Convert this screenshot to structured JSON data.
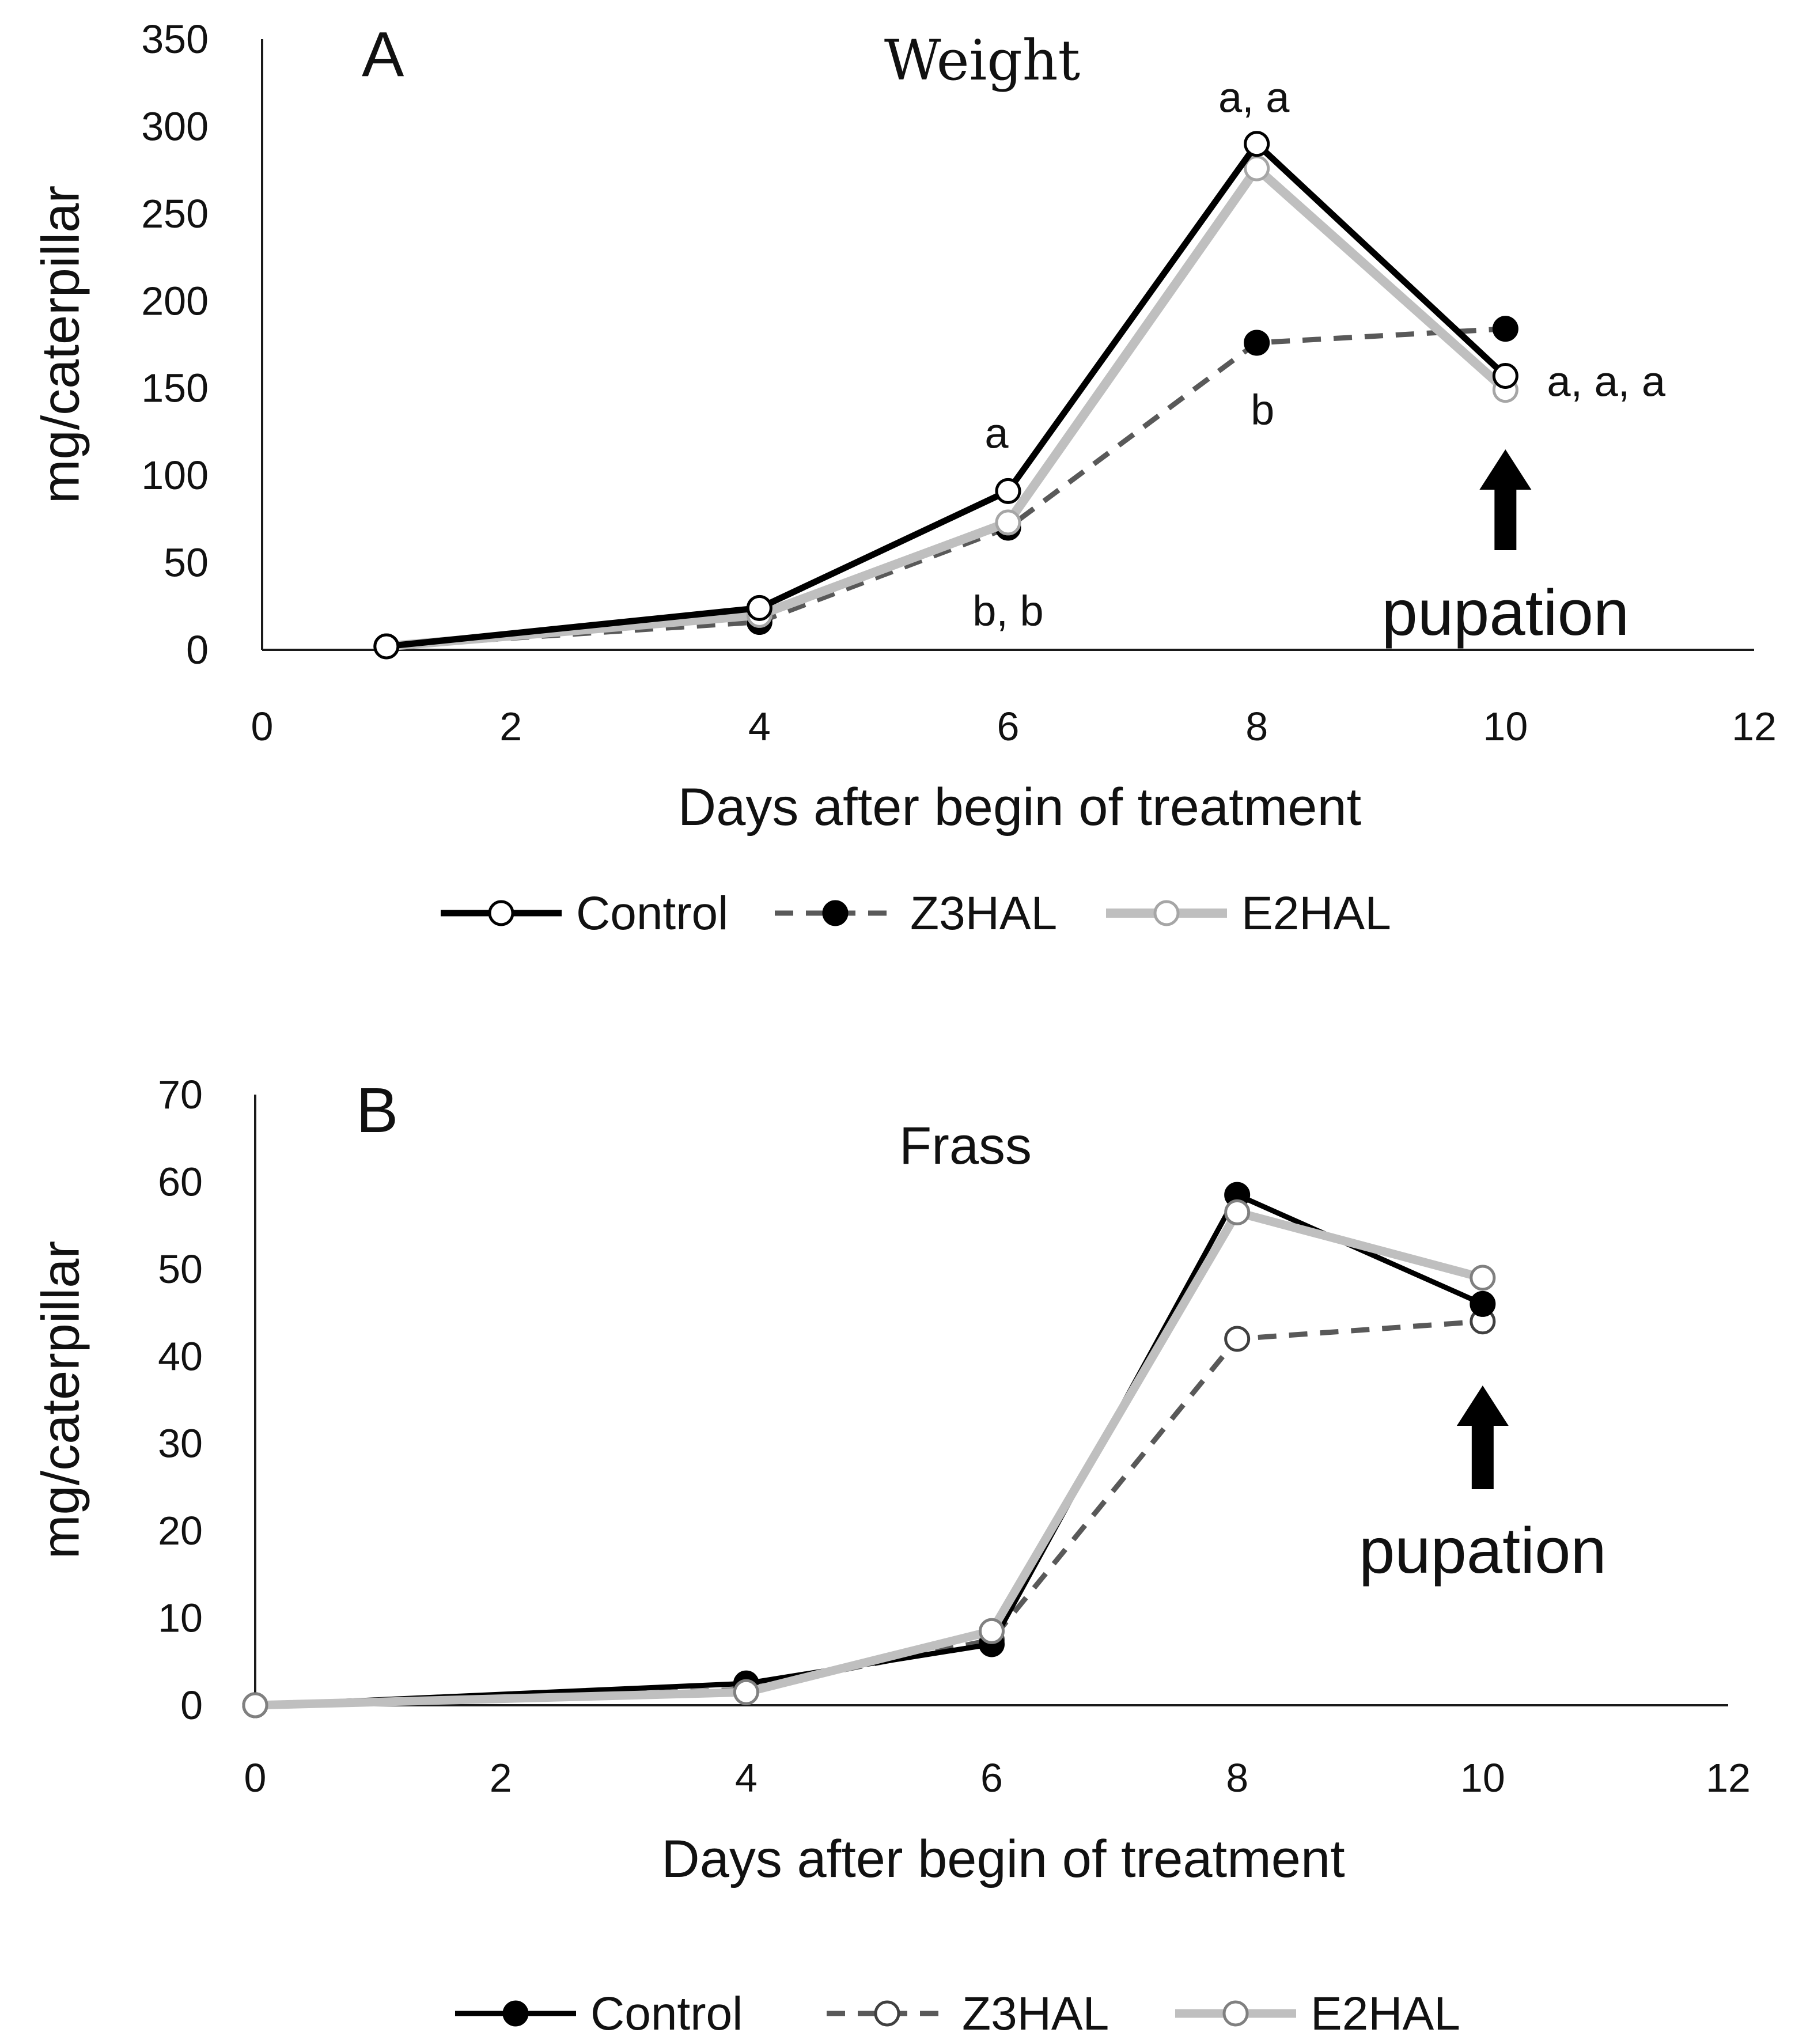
{
  "chart_data": [
    {
      "panel": "A",
      "type": "line",
      "title": "Weight",
      "xlabel": "Days after begin of treatment",
      "ylabel": "mg/caterpillar",
      "xlim": [
        0,
        12
      ],
      "ylim": [
        0,
        350
      ],
      "xticks": [
        "0",
        "2",
        "4",
        "6",
        "8",
        "10",
        "12"
      ],
      "yticks": [
        "0",
        "50",
        "100",
        "150",
        "200",
        "250",
        "300",
        "350"
      ],
      "grid": false,
      "legend_position": "bottom",
      "series": [
        {
          "name": "Control",
          "x": [
            1,
            4,
            6,
            8,
            10
          ],
          "values": [
            2,
            24,
            91,
            290,
            157
          ]
        },
        {
          "name": "Z3HAL",
          "x": [
            1,
            4,
            6,
            8,
            10
          ],
          "values": [
            2,
            16,
            70,
            176,
            184
          ]
        },
        {
          "name": "E2HAL",
          "x": [
            1,
            4,
            6,
            8,
            10
          ],
          "values": [
            2,
            20,
            73,
            276,
            149
          ]
        }
      ],
      "annotations": [
        {
          "text": "a",
          "x": 6,
          "y": 91
        },
        {
          "text": "b, b",
          "x": 6,
          "y": 70
        },
        {
          "text": "a, a",
          "x": 8,
          "y": 290
        },
        {
          "text": "b",
          "x": 8,
          "y": 176
        },
        {
          "text": "a, a, a",
          "x": 10,
          "y": 157
        }
      ],
      "pupation": {
        "text": "pupation",
        "x": 10
      }
    },
    {
      "panel": "B",
      "type": "line",
      "title": "Frass",
      "xlabel": "Days after begin of treatment",
      "ylabel": "mg/caterpillar",
      "xlim": [
        0,
        12
      ],
      "ylim": [
        0,
        70
      ],
      "xticks": [
        "0",
        "2",
        "4",
        "6",
        "8",
        "10",
        "12"
      ],
      "yticks": [
        "0",
        "10",
        "20",
        "30",
        "40",
        "50",
        "60",
        "70"
      ],
      "grid": false,
      "legend_position": "bottom",
      "series": [
        {
          "name": "Control",
          "x": [
            0,
            4,
            6,
            8,
            10
          ],
          "values": [
            0,
            2.5,
            7,
            58.5,
            46
          ]
        },
        {
          "name": "Z3HAL",
          "x": [
            0,
            4,
            6,
            8,
            10
          ],
          "values": [
            0,
            1.8,
            7.5,
            42,
            44
          ]
        },
        {
          "name": "E2HAL",
          "x": [
            0,
            4,
            6,
            8,
            10
          ],
          "values": [
            0,
            1.5,
            8.5,
            56.5,
            49
          ]
        }
      ],
      "annotations": [],
      "pupation": {
        "text": "pupation",
        "x": 10
      }
    }
  ]
}
